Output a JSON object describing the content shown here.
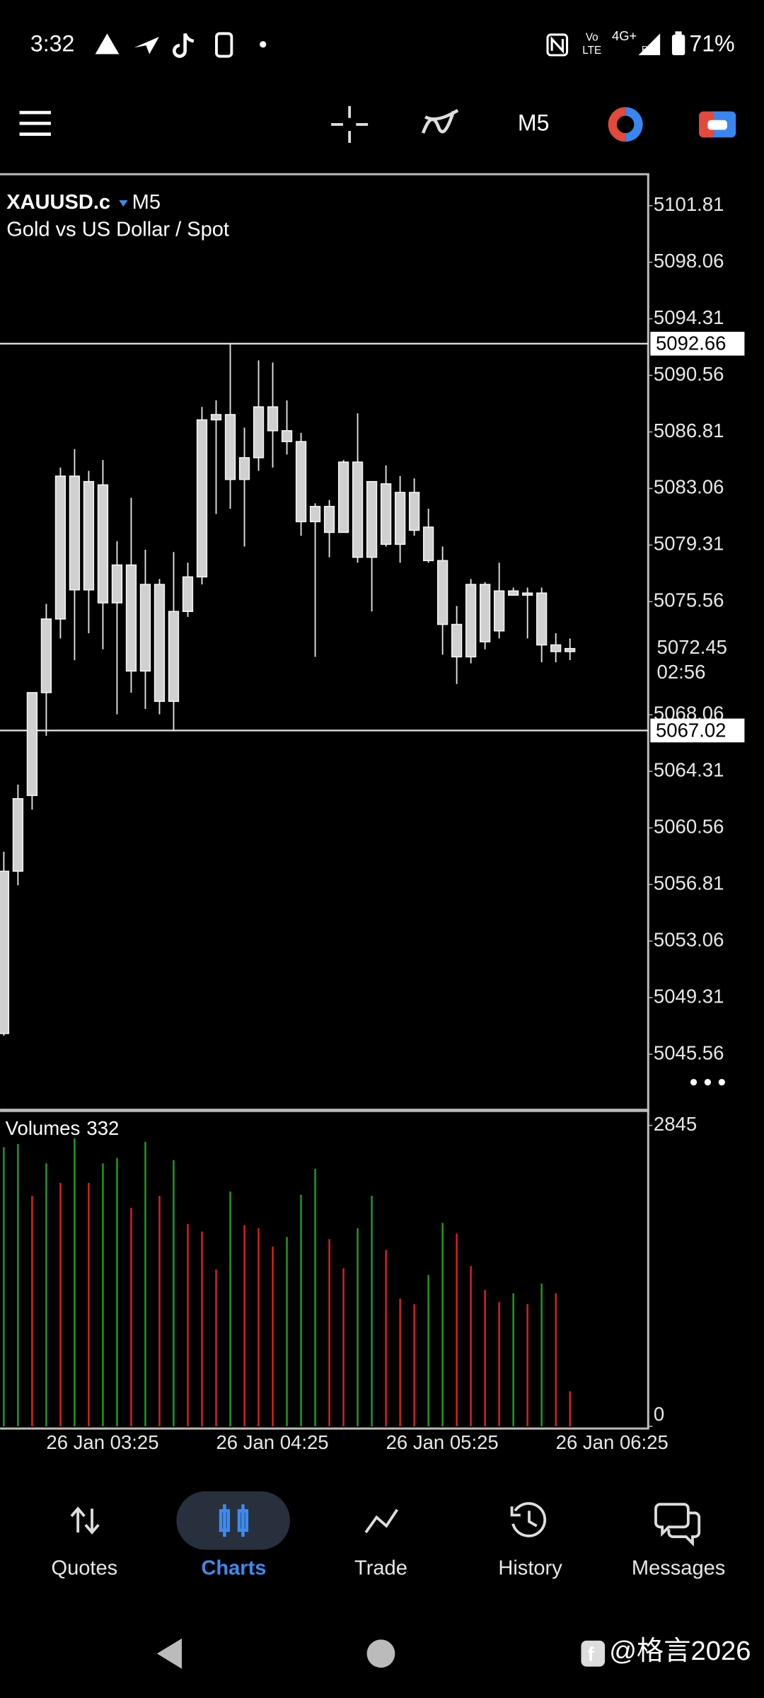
{
  "status_bar": {
    "time": "3:32",
    "volte_top": "Vo",
    "volte_bottom": "LTE",
    "network": "4G+",
    "roaming": "R",
    "battery": "71%"
  },
  "chart_data": {
    "type": "candlestick",
    "symbol": "XAUUSD.c",
    "timeframe": "M5",
    "title": "Gold vs US Dollar / Spot",
    "categories": [
      null,
      null,
      null,
      "26 Jan 03:25",
      null,
      null,
      null,
      null,
      null,
      null,
      null,
      null,
      null,
      null,
      null,
      "26 Jan 04:25",
      null,
      null,
      null,
      null,
      null,
      null,
      null,
      null,
      null,
      null,
      null,
      "26 Jan 05:25",
      null,
      null,
      null,
      null,
      null,
      null,
      null,
      null,
      null,
      null,
      null,
      "26 Jan 06:25",
      null
    ],
    "open": [
      5046.93,
      5057.69,
      5062.71,
      5069.53,
      5074.41,
      5083.88,
      5076.34,
      5083.3,
      5075.48,
      5077.99,
      5070.96,
      5076.7,
      5068.95,
      5074.91,
      5077.2,
      5087.61,
      5087.96,
      5083.66,
      5085.1,
      5088.47,
      5086.89,
      5086.17,
      5080.86,
      5081.87,
      5080.15,
      5084.81,
      5078.5,
      5083.37,
      5079.36,
      5082.8,
      5080.5,
      5078.28,
      5074.05,
      5071.9,
      5076.7,
      5073.62,
      5076.27,
      5075.99,
      5076.13,
      5072.69,
      5072.25
    ],
    "high": [
      5058.98,
      5063.43,
      5069.53,
      5075.41,
      5084.45,
      5085.67,
      5084.23,
      5084.95,
      5079.57,
      5082.44,
      5079.0,
      5077.06,
      5078.85,
      5078.14,
      5088.47,
      5088.9,
      5092.66,
      5087.1,
      5091.55,
      5091.41,
      5088.9,
      5086.75,
      5082.08,
      5082.3,
      5084.95,
      5088.04,
      5083.52,
      5084.59,
      5083.88,
      5083.73,
      5081.72,
      5079.21,
      5075.27,
      5077.06,
      5076.85,
      5078.14,
      5076.49,
      5076.49,
      5076.49,
      5073.47,
      5073.12
    ],
    "low": [
      5046.79,
      5056.76,
      5061.78,
      5066.66,
      5073.12,
      5071.68,
      5073.47,
      5072.4,
      5068.09,
      5069.53,
      5068.45,
      5068.09,
      5067.02,
      5074.55,
      5076.7,
      5081.37,
      5081.72,
      5079.21,
      5084.23,
      5084.45,
      5085.31,
      5079.93,
      5071.9,
      5078.5,
      5080.15,
      5078.14,
      5074.91,
      5079.21,
      5078.14,
      5079.93,
      5078.14,
      5072.04,
      5070.1,
      5071.47,
      5072.4,
      5073.12,
      5075.99,
      5073.12,
      5071.54,
      5071.54,
      5071.68
    ],
    "close": [
      5057.69,
      5062.5,
      5069.53,
      5074.41,
      5083.88,
      5076.34,
      5083.52,
      5075.48,
      5077.99,
      5070.96,
      5076.7,
      5068.95,
      5074.91,
      5077.2,
      5087.61,
      5087.96,
      5083.66,
      5085.1,
      5088.47,
      5086.89,
      5086.17,
      5080.86,
      5081.87,
      5080.15,
      5084.81,
      5078.5,
      5083.52,
      5079.36,
      5082.8,
      5080.29,
      5078.28,
      5074.05,
      5071.9,
      5076.7,
      5072.9,
      5076.27,
      5075.99,
      5076.13,
      5072.69,
      5072.25,
      5072.45
    ],
    "candle_color": "#d0d0d0",
    "ylim": [
      5041.91,
      5103.82
    ],
    "yticks": [
      5101.81,
      5098.06,
      5094.31,
      5090.56,
      5086.81,
      5083.06,
      5079.31,
      5075.56,
      5068.06,
      5064.31,
      5060.56,
      5056.81,
      5053.06,
      5049.31,
      5045.56
    ],
    "hlines": [
      5092.66,
      5067.02
    ],
    "countdown": "02:56",
    "volume": {
      "name": "Volumes",
      "values": [
        2640,
        2670,
        2179,
        2486,
        2302,
        2721,
        2302,
        2486,
        2537,
        2066,
        2690,
        2179,
        2517,
        1913,
        1841,
        1483,
        2220,
        1903,
        1872,
        1698,
        1790,
        2189,
        2435,
        1770,
        1494,
        1872,
        2179,
        1667,
        1207,
        1156,
        1432,
        1923,
        1821,
        1514,
        1289,
        1176,
        1258,
        1156,
        1350,
        1258,
        332
      ],
      "increase_color": "#1f9d1f",
      "decrease_color": "#e0201c",
      "ylim": [
        0,
        2977
      ],
      "yticks": [
        2845,
        0
      ]
    }
  },
  "nav": {
    "items": [
      "Quotes",
      "Charts",
      "Trade",
      "History",
      "Messages"
    ],
    "active": 1
  },
  "watermark": "@格言2026"
}
